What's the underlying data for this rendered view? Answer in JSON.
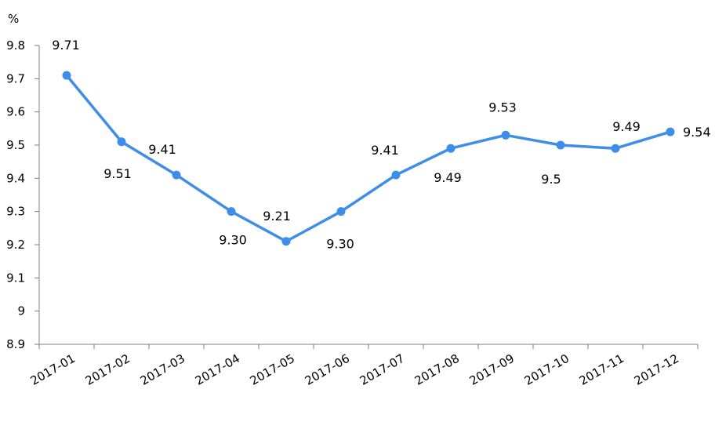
{
  "chart_data": {
    "type": "line",
    "title": "",
    "xlabel": "",
    "ylabel": "%",
    "ylim": [
      8.9,
      9.8
    ],
    "y_ticks": [
      "9.8",
      "9.7",
      "9.6",
      "9.5",
      "9.4",
      "9.3",
      "9.2",
      "9.1",
      "9",
      "8.9"
    ],
    "grid": false,
    "legend": "none",
    "categories": [
      "2017-01",
      "2017-02",
      "2017-03",
      "2017-04",
      "2017-05",
      "2017-06",
      "2017-07",
      "2017-08",
      "2017-09",
      "2017-10",
      "2017-11",
      "2017-12"
    ],
    "series": [
      {
        "color": "#3c8ee8",
        "values": [
          9.71,
          9.51,
          9.41,
          9.3,
          9.21,
          9.3,
          9.41,
          9.49,
          9.53,
          9.5,
          9.49,
          9.54
        ],
        "labels": [
          "9.71",
          "9.51",
          "9.41",
          "9.30",
          "9.21",
          "9.30",
          "9.41",
          "9.49",
          "9.53",
          "9.5",
          "9.49",
          "9.54"
        ]
      }
    ]
  }
}
